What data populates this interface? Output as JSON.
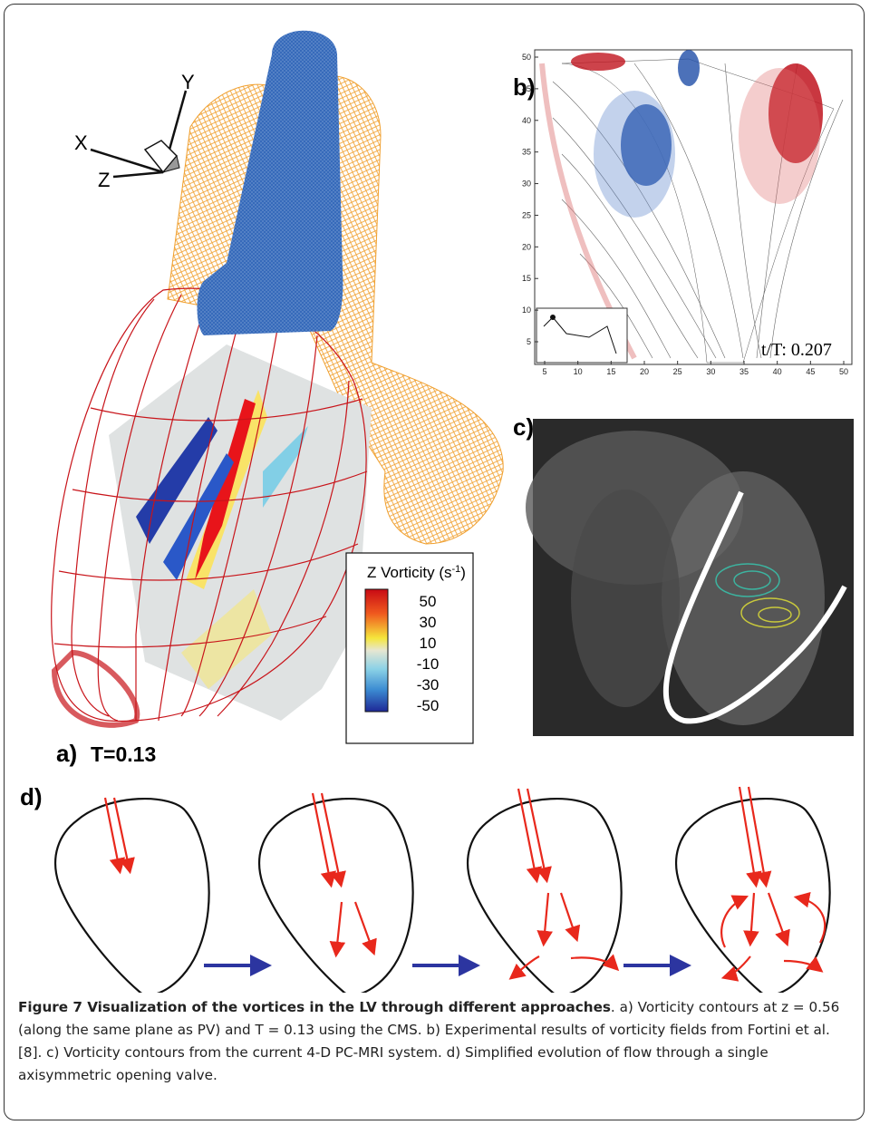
{
  "panel_a": {
    "label": "a)",
    "time": "T=0.13",
    "axes": {
      "x": "X",
      "y": "Y",
      "z": "Z"
    },
    "colorbar": {
      "title": "Z Vorticity (s",
      "title_sup": "-1",
      "title_end": ")",
      "ticks": [
        "50",
        "30",
        "10",
        "-10",
        "-30",
        "-50"
      ]
    }
  },
  "panel_b": {
    "label": "b)",
    "time": "t/T: 0.207",
    "xticks": [
      "5",
      "10",
      "15",
      "20",
      "25",
      "30",
      "35",
      "40",
      "45",
      "50"
    ],
    "yticks": [
      "50",
      "45",
      "40",
      "35",
      "30",
      "25",
      "20",
      "15",
      "10",
      "5"
    ]
  },
  "panel_c": {
    "label": "c)"
  },
  "panel_d": {
    "label": "d)"
  },
  "caption": {
    "title": "Figure 7 Visualization of the vortices in the LV through different approaches",
    "text": ". a) Vorticity contours at z = 0.56 (along the same plane as PV) and T = 0.13 using the CMS. b) Experimental results of vorticity fields from Fortini et al. [8]. c) Vorticity contours from the current 4-D PC-MRI system. d) Simplified evolution of flow through a single axisymmetric opening valve."
  }
}
